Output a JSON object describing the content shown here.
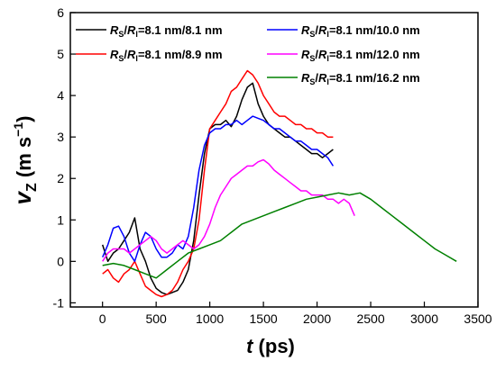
{
  "chart_data": {
    "type": "line",
    "xlabel": "t (ps)",
    "ylabel": "v_z (m s^-1)",
    "xlim": [
      -300,
      3500
    ],
    "ylim": [
      -1.1,
      6
    ],
    "x_ticks": [
      0,
      500,
      1000,
      1500,
      2000,
      2500,
      3000,
      3500
    ],
    "y_ticks": [
      -1,
      0,
      1,
      2,
      3,
      4,
      5,
      6
    ],
    "grid": false,
    "legend_position": "top",
    "series": [
      {
        "name": "Rs/Rl=8.1 nm/8.1 nm",
        "color": "#000000",
        "x": [
          0,
          50,
          100,
          150,
          200,
          250,
          300,
          350,
          400,
          450,
          500,
          550,
          600,
          650,
          700,
          750,
          800,
          850,
          900,
          950,
          1000,
          1050,
          1100,
          1150,
          1200,
          1250,
          1300,
          1350,
          1400,
          1450,
          1500,
          1550,
          1600,
          1650,
          1700,
          1750,
          1800,
          1850,
          1900,
          1950,
          2000,
          2050,
          2100,
          2150
        ],
        "values": [
          0.4,
          0.0,
          0.2,
          0.3,
          0.5,
          0.7,
          1.05,
          0.3,
          0.0,
          -0.4,
          -0.65,
          -0.75,
          -0.8,
          -0.75,
          -0.7,
          -0.5,
          -0.2,
          0.5,
          1.6,
          2.6,
          3.2,
          3.3,
          3.3,
          3.4,
          3.25,
          3.5,
          3.9,
          4.2,
          4.3,
          3.8,
          3.5,
          3.3,
          3.2,
          3.1,
          3.0,
          3.0,
          2.9,
          2.8,
          2.7,
          2.6,
          2.6,
          2.5,
          2.6,
          2.7
        ]
      },
      {
        "name": "Rs/Rl=8.1 nm/8.9 nm",
        "color": "#ff0000",
        "x": [
          0,
          50,
          100,
          150,
          200,
          250,
          300,
          350,
          400,
          450,
          500,
          550,
          600,
          650,
          700,
          750,
          800,
          850,
          900,
          950,
          1000,
          1050,
          1100,
          1150,
          1200,
          1250,
          1300,
          1350,
          1400,
          1450,
          1500,
          1550,
          1600,
          1650,
          1700,
          1750,
          1800,
          1850,
          1900,
          1950,
          2000,
          2050,
          2100,
          2150
        ],
        "values": [
          -0.3,
          -0.2,
          -0.4,
          -0.5,
          -0.3,
          -0.2,
          0.0,
          -0.3,
          -0.6,
          -0.7,
          -0.8,
          -0.85,
          -0.8,
          -0.7,
          -0.5,
          -0.2,
          0.0,
          0.3,
          1.0,
          2.2,
          3.2,
          3.4,
          3.6,
          3.8,
          4.1,
          4.2,
          4.4,
          4.6,
          4.5,
          4.3,
          4.0,
          3.8,
          3.6,
          3.5,
          3.5,
          3.4,
          3.3,
          3.3,
          3.2,
          3.2,
          3.1,
          3.1,
          3.0,
          3.0
        ]
      },
      {
        "name": "Rs/Rl=8.1 nm/10.0 nm",
        "color": "#0000ff",
        "x": [
          0,
          50,
          100,
          150,
          200,
          250,
          300,
          350,
          400,
          450,
          500,
          550,
          600,
          650,
          700,
          750,
          800,
          850,
          900,
          950,
          1000,
          1050,
          1100,
          1150,
          1200,
          1250,
          1300,
          1350,
          1400,
          1450,
          1500,
          1550,
          1600,
          1650,
          1700,
          1750,
          1800,
          1850,
          1900,
          1950,
          2000,
          2050,
          2100,
          2150
        ],
        "values": [
          0.1,
          0.4,
          0.8,
          0.85,
          0.6,
          0.2,
          0.0,
          0.4,
          0.7,
          0.6,
          0.3,
          0.1,
          0.1,
          0.2,
          0.4,
          0.3,
          0.6,
          1.3,
          2.2,
          2.8,
          3.1,
          3.2,
          3.2,
          3.3,
          3.3,
          3.4,
          3.3,
          3.4,
          3.5,
          3.45,
          3.4,
          3.3,
          3.2,
          3.2,
          3.1,
          3.0,
          2.9,
          2.9,
          2.8,
          2.7,
          2.7,
          2.6,
          2.5,
          2.3
        ]
      },
      {
        "name": "Rs/Rl=8.1 nm/12.0 nm",
        "color": "#ff00ff",
        "x": [
          0,
          50,
          100,
          150,
          200,
          250,
          300,
          350,
          400,
          450,
          500,
          550,
          600,
          650,
          700,
          750,
          800,
          850,
          900,
          950,
          1000,
          1050,
          1100,
          1150,
          1200,
          1250,
          1300,
          1350,
          1400,
          1450,
          1500,
          1550,
          1600,
          1650,
          1700,
          1750,
          1800,
          1850,
          1900,
          1950,
          2000,
          2050,
          2100,
          2150,
          2200,
          2250,
          2300,
          2350
        ],
        "values": [
          0.0,
          0.2,
          0.3,
          0.3,
          0.3,
          0.2,
          0.3,
          0.4,
          0.5,
          0.6,
          0.5,
          0.3,
          0.2,
          0.3,
          0.4,
          0.5,
          0.4,
          0.3,
          0.4,
          0.6,
          0.9,
          1.3,
          1.6,
          1.8,
          2.0,
          2.1,
          2.2,
          2.3,
          2.3,
          2.4,
          2.45,
          2.35,
          2.2,
          2.1,
          2.0,
          1.9,
          1.8,
          1.7,
          1.7,
          1.6,
          1.6,
          1.6,
          1.5,
          1.5,
          1.4,
          1.5,
          1.4,
          1.1
        ]
      },
      {
        "name": "Rs/Rl=8.1 nm/16.2 nm",
        "color": "#008000",
        "x": [
          0,
          100,
          200,
          300,
          400,
          500,
          600,
          700,
          800,
          900,
          1000,
          1100,
          1200,
          1300,
          1400,
          1500,
          1600,
          1700,
          1800,
          1900,
          2000,
          2100,
          2200,
          2300,
          2400,
          2500,
          2600,
          2700,
          2800,
          2900,
          3000,
          3100,
          3200,
          3300
        ],
        "values": [
          -0.1,
          -0.05,
          -0.1,
          -0.2,
          -0.3,
          -0.4,
          -0.2,
          0.0,
          0.2,
          0.3,
          0.4,
          0.5,
          0.7,
          0.9,
          1.0,
          1.1,
          1.2,
          1.3,
          1.4,
          1.5,
          1.55,
          1.6,
          1.65,
          1.6,
          1.65,
          1.5,
          1.3,
          1.1,
          0.9,
          0.7,
          0.5,
          0.3,
          0.15,
          0.0
        ]
      }
    ]
  },
  "axis_text": {
    "x_variable": "t",
    "x_unit": " (ps)",
    "y_variable": "v",
    "y_subscript": "Z",
    "y_unit_open": " (m s",
    "y_exponent": "−1",
    "y_unit_close": ")"
  },
  "legend": [
    {
      "prefix_1": "R",
      "sub_1": "S",
      "slash": "/",
      "prefix_2": "R",
      "sub_2": "l",
      "suffix": "=8.1 nm/8.1 nm"
    },
    {
      "prefix_1": "R",
      "sub_1": "S",
      "slash": "/",
      "prefix_2": "R",
      "sub_2": "l",
      "suffix": "=8.1 nm/8.9 nm"
    },
    {
      "prefix_1": "R",
      "sub_1": "S",
      "slash": "/",
      "prefix_2": "R",
      "sub_2": "l",
      "suffix": "=8.1 nm/10.0 nm"
    },
    {
      "prefix_1": "R",
      "sub_1": "S",
      "slash": "/",
      "prefix_2": "R",
      "sub_2": "l",
      "suffix": "=8.1 nm/12.0 nm"
    },
    {
      "prefix_1": "R",
      "sub_1": "S",
      "slash": "/",
      "prefix_2": "R",
      "sub_2": "l",
      "suffix": "=8.1 nm/16.2 nm"
    }
  ]
}
